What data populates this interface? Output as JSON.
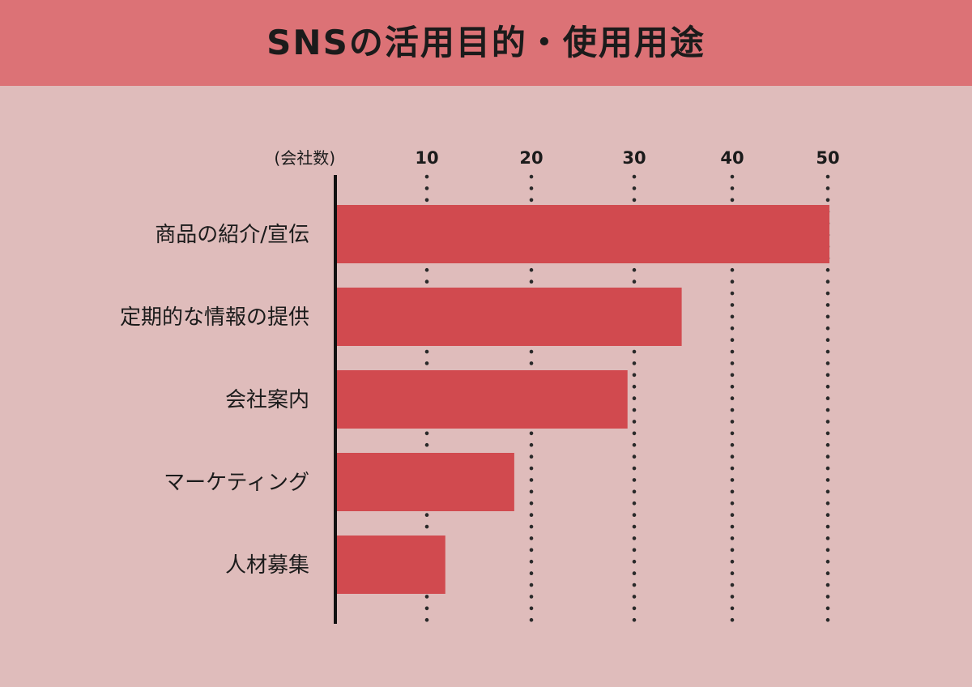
{
  "chart_data": {
    "type": "bar",
    "orientation": "horizontal",
    "title": "SNSの活用目的・使用用途",
    "unit_label": "(会社数)",
    "categories": [
      "商品の紹介/宣伝",
      "定期的な情報の提供",
      "会社案内",
      "マーケティング",
      "人材募集"
    ],
    "values": [
      50,
      35,
      29.5,
      18,
      11
    ],
    "x_ticks": [
      10,
      20,
      30,
      40,
      50
    ],
    "xlim": [
      0,
      50
    ],
    "grid": true,
    "grid_style": "dotted",
    "legend": "none"
  },
  "colors": {
    "background": "#dfbcbb",
    "header": "#dc7276",
    "bar": "#d14a4f",
    "text": "#1b1b1b",
    "grid_dots": "#2a2a2a"
  }
}
